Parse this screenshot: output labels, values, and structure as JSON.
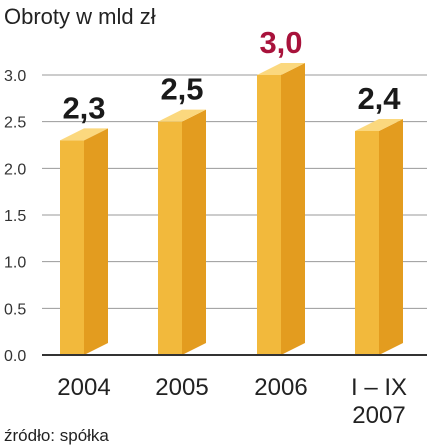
{
  "colors": {
    "bar_front": "#f2b93c",
    "bar_side": "#e39c1f",
    "bar_top": "#fbd87e",
    "value_normal": "#1a1a1a",
    "value_highlight": "#a8123b",
    "grid": "#999999",
    "axis": "#333333"
  },
  "chart_data": {
    "type": "bar",
    "title": "Obroty w mld zł",
    "categories": [
      "2004",
      "2005",
      "2006",
      "I – IX|2007"
    ],
    "values": [
      2.3,
      2.5,
      3.0,
      2.4
    ],
    "value_labels": [
      "2,3",
      "2,5",
      "3,0",
      "2,4"
    ],
    "highlight_index": 2,
    "yticks": [
      "3.0",
      "2.5",
      "2.0",
      "1.5",
      "1.0",
      "0.5",
      "0.0"
    ],
    "ylim": [
      0,
      3.0
    ],
    "grid": true,
    "bar_style": "3d"
  },
  "source": "źródło: spółka"
}
